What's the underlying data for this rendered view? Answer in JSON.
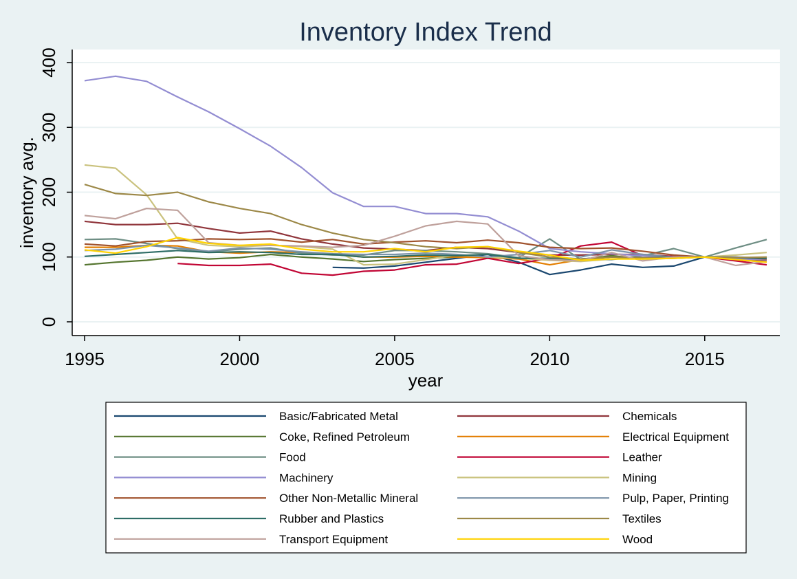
{
  "chart_data": {
    "type": "line",
    "title": "Inventory Index Trend",
    "xlabel": "year",
    "ylabel": "inventory avg.",
    "xlim": [
      1995,
      2017
    ],
    "ylim": [
      0,
      400
    ],
    "xticks": [
      1995,
      2000,
      2005,
      2010,
      2015
    ],
    "yticks": [
      0,
      100,
      200,
      300,
      400
    ],
    "grid": true,
    "legend_position": "bottom",
    "x": [
      1995,
      1996,
      1997,
      1998,
      1999,
      2000,
      2001,
      2002,
      2003,
      2004,
      2005,
      2006,
      2007,
      2008,
      2009,
      2010,
      2011,
      2012,
      2013,
      2014,
      2015,
      2016,
      2017
    ],
    "series": [
      {
        "name": "Basic/Fabricated Metal",
        "color": "#1a476f",
        "values": [
          null,
          null,
          null,
          null,
          null,
          null,
          null,
          null,
          84,
          83,
          86,
          92,
          98,
          104,
          92,
          73,
          80,
          89,
          84,
          86,
          100,
          97,
          95
        ]
      },
      {
        "name": "Chemicals",
        "color": "#90353b",
        "values": [
          155,
          150,
          150,
          152,
          144,
          137,
          140,
          128,
          120,
          114,
          112,
          110,
          115,
          113,
          107,
          103,
          103,
          104,
          104,
          101,
          100,
          97,
          95
        ]
      },
      {
        "name": "Coke, Refined Petroleum",
        "color": "#55752f",
        "values": [
          88,
          92,
          95,
          100,
          97,
          99,
          104,
          100,
          97,
          93,
          96,
          98,
          100,
          100,
          98,
          96,
          96,
          102,
          97,
          98,
          100,
          99,
          98
        ]
      },
      {
        "name": "Electrical Equipment",
        "color": "#e37e00",
        "values": [
          115,
          115,
          118,
          117,
          108,
          106,
          108,
          107,
          104,
          100,
          100,
          101,
          100,
          99,
          97,
          88,
          96,
          100,
          98,
          99,
          100,
          96,
          92
        ]
      },
      {
        "name": "Food",
        "color": "#6e8e84",
        "values": [
          127,
          128,
          121,
          113,
          108,
          112,
          114,
          106,
          103,
          103,
          110,
          110,
          108,
          105,
          99,
          128,
          96,
          96,
          102,
          113,
          100,
          114,
          127
        ]
      },
      {
        "name": "Leather",
        "color": "#c10534",
        "values": [
          null,
          null,
          null,
          90,
          87,
          87,
          89,
          75,
          72,
          78,
          80,
          88,
          89,
          98,
          90,
          98,
          117,
          123,
          102,
          101,
          100,
          94,
          88
        ]
      },
      {
        "name": "Machinery",
        "color": "#938dd2",
        "values": [
          372,
          379,
          371,
          347,
          324,
          298,
          271,
          238,
          199,
          178,
          178,
          167,
          167,
          162,
          140,
          113,
          108,
          105,
          102,
          100,
          100,
          97,
          96
        ]
      },
      {
        "name": "Mining",
        "color": "#cac27e",
        "values": [
          242,
          237,
          196,
          128,
          118,
          116,
          118,
          116,
          112,
          88,
          89,
          96,
          103,
          100,
          98,
          95,
          93,
          97,
          98,
          100,
          100,
          103,
          107
        ]
      },
      {
        "name": "Other Non-Metallic Mineral",
        "color": "#a0522d",
        "values": [
          120,
          117,
          124,
          125,
          128,
          127,
          128,
          123,
          127,
          120,
          123,
          125,
          122,
          126,
          122,
          115,
          113,
          114,
          109,
          103,
          100,
          100,
          97
        ]
      },
      {
        "name": "Pulp, Paper, Printing",
        "color": "#7b92a8",
        "values": [
          110,
          112,
          118,
          114,
          109,
          114,
          112,
          108,
          105,
          104,
          104,
          106,
          104,
          100,
          104,
          110,
          100,
          111,
          104,
          100,
          100,
          100,
          98
        ]
      },
      {
        "name": "Rubber and Plastics",
        "color": "#2d6d66",
        "values": [
          101,
          104,
          107,
          110,
          107,
          108,
          107,
          104,
          104,
          100,
          101,
          103,
          102,
          104,
          98,
          98,
          97,
          100,
          99,
          100,
          100,
          99,
          98
        ]
      },
      {
        "name": "Textiles",
        "color": "#9c8847",
        "values": [
          212,
          198,
          195,
          200,
          185,
          175,
          167,
          150,
          137,
          127,
          122,
          116,
          113,
          116,
          107,
          100,
          97,
          100,
          99,
          99,
          100,
          99,
          100
        ]
      },
      {
        "name": "Transport Equipment",
        "color": "#bfa19c",
        "values": [
          164,
          159,
          175,
          172,
          122,
          118,
          118,
          117,
          115,
          118,
          132,
          148,
          155,
          151,
          102,
          96,
          94,
          107,
          94,
          100,
          100,
          87,
          93
        ]
      },
      {
        "name": "Wood",
        "color": "#ffd200",
        "values": [
          111,
          106,
          116,
          130,
          121,
          118,
          120,
          112,
          108,
          108,
          113,
          108,
          115,
          116,
          109,
          103,
          95,
          97,
          97,
          98,
          100,
          96,
          92
        ]
      }
    ]
  }
}
